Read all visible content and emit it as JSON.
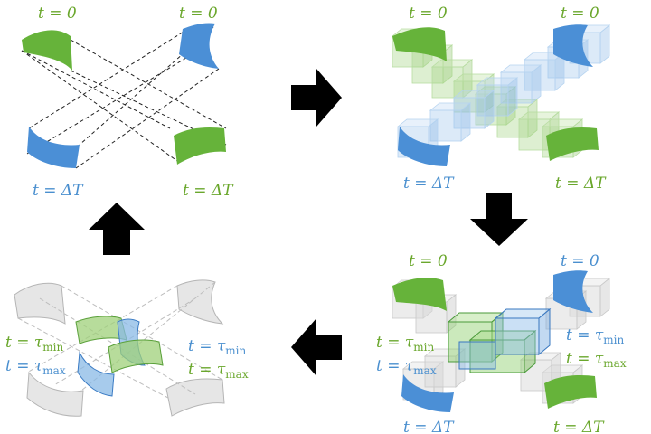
{
  "colors": {
    "green_text": "#6aa72c",
    "blue_text": "#4a8fcf",
    "green_shape": "#66b33a",
    "blue_shape": "#4b8fd6",
    "arrow": "#000000"
  },
  "panels": {
    "top_left": {
      "label_green_start": "t = 0",
      "label_blue_start": "t = 0",
      "label_blue_end": "t = ΔT",
      "label_green_end": "t = ΔT"
    },
    "top_right": {
      "label_green_start": "t = 0",
      "label_blue_start": "t = 0",
      "label_blue_end": "t = ΔT",
      "label_green_end": "t = ΔT"
    },
    "bottom_right": {
      "label_green_start": "t = 0",
      "label_blue_start": "t = 0",
      "tau_green_left_base": "t = τ",
      "tau_green_left_sub": "min",
      "tau_blue_left_base": "t = τ",
      "tau_blue_left_sub": "max",
      "tau_blue_right_base": "t = τ",
      "tau_blue_right_sub": "min",
      "tau_green_right_base": "t = τ",
      "tau_green_right_sub": "max",
      "label_blue_end": "t = ΔT",
      "label_green_end": "t = ΔT"
    },
    "bottom_left": {
      "tau_green_left_base": "t = τ",
      "tau_green_left_sub": "min",
      "tau_blue_left_base": "t = τ",
      "tau_blue_left_sub": "max",
      "tau_blue_right_base": "t = τ",
      "tau_blue_right_sub": "min",
      "tau_green_right_base": "t = τ",
      "tau_green_right_sub": "max"
    }
  },
  "arrows": [
    "right",
    "down",
    "left",
    "up"
  ]
}
